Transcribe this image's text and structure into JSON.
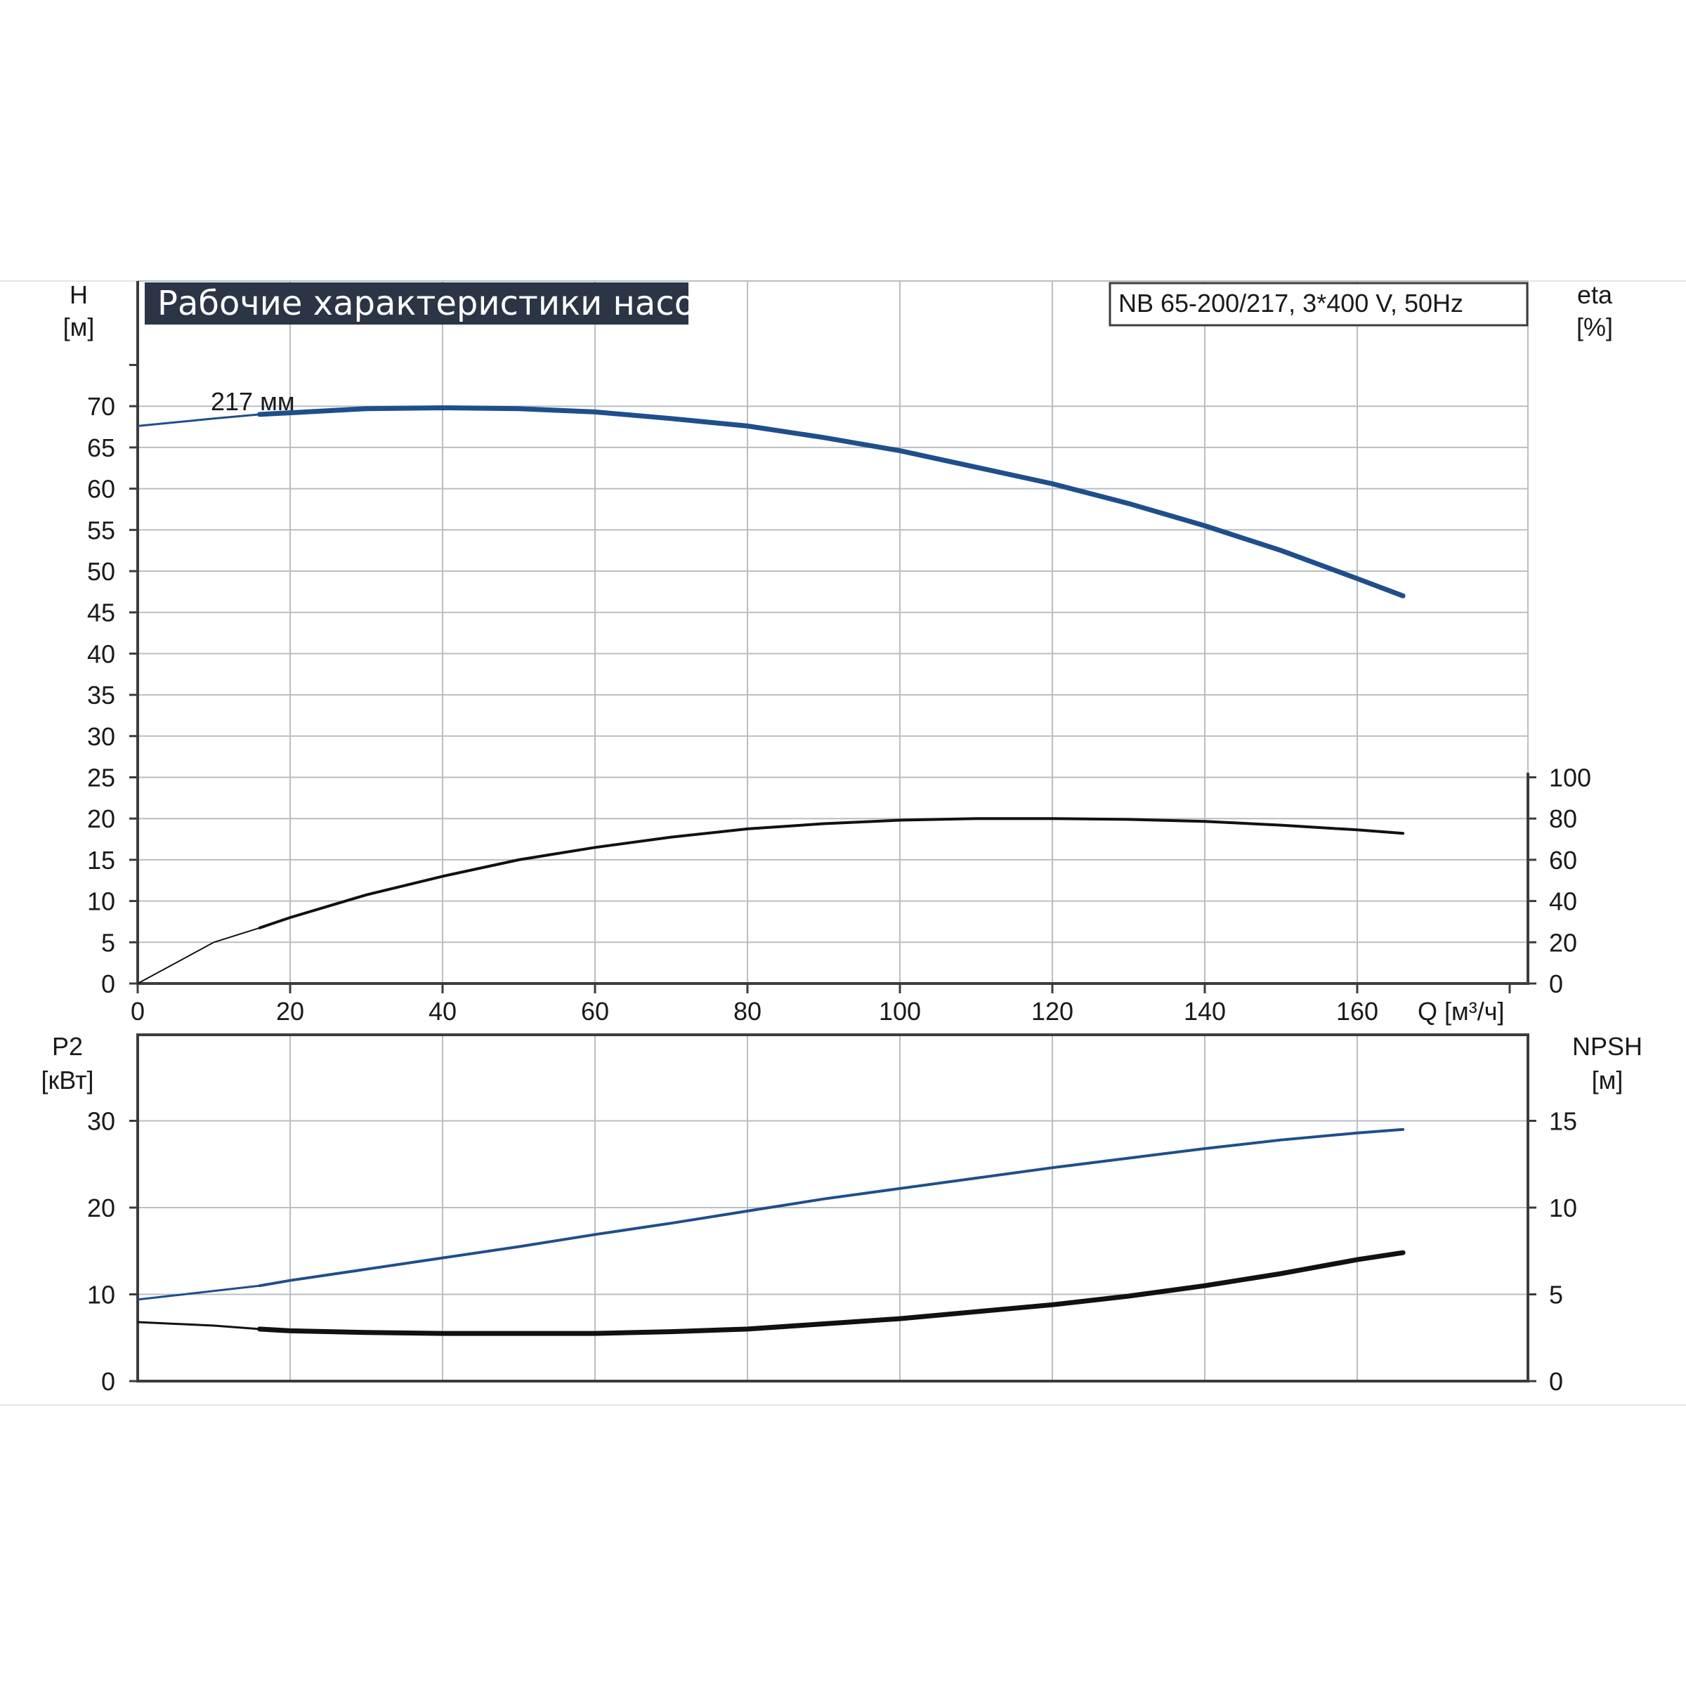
{
  "title": "Рабочие характеристики насоса",
  "model": "NB 65-200/217, 3*400 V, 50Hz",
  "impeller_label": "217 мм",
  "colors": {
    "blue_curve": "#1f4e8c",
    "black_curve": "#111111",
    "title_bg": "#2b3545",
    "grid": "#b9bec6"
  },
  "chart_data": [
    {
      "type": "line",
      "title": "Рабочие характеристики насоса",
      "xlabel": "Q [м³/ч]",
      "x_ticks": [
        "0",
        "20",
        "40",
        "60",
        "80",
        "100",
        "120",
        "140",
        "160"
      ],
      "xlim": [
        0,
        182
      ],
      "ylabel_left": {
        "name": "H",
        "unit": "[м]"
      },
      "ylabel_right": {
        "name": "eta",
        "unit": "[%]"
      },
      "ylim_left": [
        0,
        80
      ],
      "ylim_right": [
        0,
        200
      ],
      "y_ticks_left": [
        "0",
        "5",
        "10",
        "15",
        "20",
        "25",
        "30",
        "35",
        "40",
        "45",
        "50",
        "55",
        "60",
        "65",
        "70"
      ],
      "y_ticks_right": [
        "0",
        "20",
        "40",
        "60",
        "80",
        "100"
      ],
      "grid": true,
      "series": [
        {
          "axis": "left",
          "annotation": "217 мм",
          "color": "#1f4e8c",
          "x": [
            0,
            10,
            16,
            20,
            30,
            40,
            50,
            60,
            70,
            80,
            90,
            100,
            110,
            120,
            130,
            140,
            150,
            160,
            166
          ],
          "y": [
            67.6,
            68.5,
            69.0,
            69.2,
            69.7,
            69.8,
            69.7,
            69.3,
            68.5,
            67.6,
            66.2,
            64.6,
            62.6,
            60.6,
            58.2,
            55.5,
            52.5,
            49.1,
            47.0
          ]
        },
        {
          "axis": "right",
          "color": "#111111",
          "x": [
            0,
            10,
            16,
            20,
            30,
            40,
            50,
            60,
            70,
            80,
            90,
            100,
            110,
            120,
            130,
            140,
            150,
            160,
            166
          ],
          "y": [
            0,
            20,
            27,
            32,
            43,
            52,
            60,
            66,
            71,
            75,
            77.5,
            79.2,
            80,
            80,
            79.6,
            78.6,
            76.8,
            74.5,
            72.8
          ]
        }
      ]
    },
    {
      "type": "line",
      "xlim": [
        0,
        182
      ],
      "ylabel_left": {
        "name": "P2",
        "unit": "[кВт]"
      },
      "ylabel_right": {
        "name": "NPSH",
        "unit": "[м]"
      },
      "ylim_left": [
        0,
        40
      ],
      "ylim_right": [
        0,
        20
      ],
      "y_ticks_left": [
        "0",
        "10",
        "20",
        "30"
      ],
      "y_ticks_right": [
        "0",
        "5",
        "10",
        "15"
      ],
      "grid": true,
      "series": [
        {
          "axis": "left",
          "color": "#1f4e8c",
          "x": [
            0,
            10,
            16,
            20,
            30,
            40,
            50,
            60,
            70,
            80,
            90,
            100,
            110,
            120,
            130,
            140,
            150,
            160,
            166
          ],
          "y": [
            9.4,
            10.4,
            11.0,
            11.6,
            12.9,
            14.2,
            15.5,
            16.9,
            18.2,
            19.6,
            21.0,
            22.2,
            23.4,
            24.6,
            25.7,
            26.8,
            27.8,
            28.6,
            29.0
          ]
        },
        {
          "axis": "right",
          "color": "#111111",
          "x": [
            0,
            10,
            16,
            20,
            30,
            40,
            50,
            60,
            70,
            80,
            90,
            100,
            110,
            120,
            130,
            140,
            150,
            160,
            166
          ],
          "y": [
            3.4,
            3.2,
            3.0,
            2.9,
            2.8,
            2.75,
            2.75,
            2.75,
            2.85,
            3.0,
            3.3,
            3.6,
            4.0,
            4.4,
            4.9,
            5.5,
            6.2,
            7.0,
            7.4
          ]
        }
      ]
    }
  ]
}
